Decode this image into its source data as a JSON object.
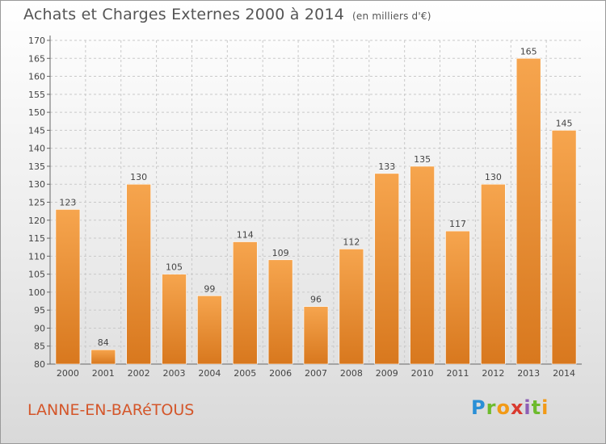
{
  "header": {
    "title": "Achats et Charges Externes 2000 à 2014",
    "unit": "(en milliers d'€)"
  },
  "footer": {
    "location": "LANNE-EN-BARéTOUS",
    "logo": "Proxiti"
  },
  "colors": {
    "bar_light": "#f6a54e",
    "bar_dark": "#d8781e",
    "location_text": "#d4562a"
  },
  "chart_data": {
    "type": "bar",
    "title": "Achats et Charges Externes 2000 à 2014",
    "categories": [
      "2000",
      "2001",
      "2002",
      "2003",
      "2004",
      "2005",
      "2006",
      "2007",
      "2008",
      "2009",
      "2010",
      "2011",
      "2012",
      "2013",
      "2014"
    ],
    "values": [
      123,
      84,
      130,
      105,
      99,
      114,
      109,
      96,
      112,
      133,
      135,
      117,
      130,
      165,
      145
    ],
    "ylim": [
      80,
      170
    ],
    "yticks": [
      80,
      85,
      90,
      95,
      100,
      105,
      110,
      115,
      120,
      125,
      130,
      135,
      140,
      145,
      150,
      155,
      160,
      165,
      170
    ],
    "grid": true,
    "xlabel": "",
    "ylabel": ""
  }
}
